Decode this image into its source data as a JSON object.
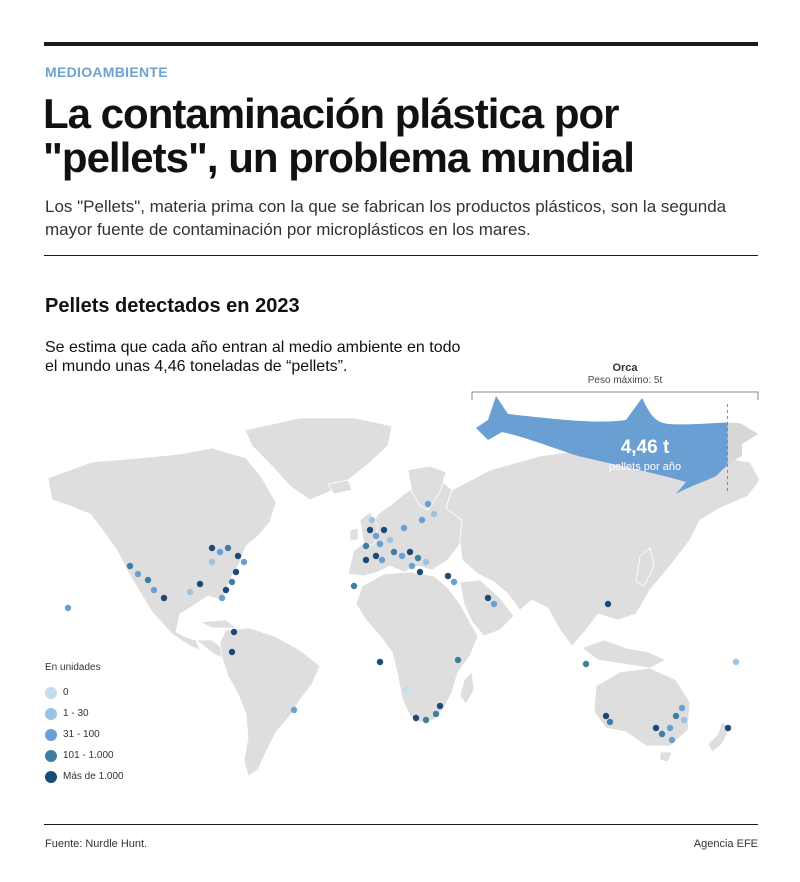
{
  "header": {
    "kicker": "MEDIOAMBIENTE",
    "title": "La contaminación plástica por \"pellets\", un problema mundial",
    "subtitle": "Los \"Pellets\", materia prima con la que se fabrican los productos plásticos, son la segunda mayor fuente de contaminación por microplásticos en los mares."
  },
  "section": {
    "title": "Pellets detectados en 2023",
    "description": "Se estima que cada año entran al medio ambiente en todo el mundo unas 4,46 toneladas de “pellets”."
  },
  "orca": {
    "name": "Orca",
    "max_weight": "Peso máximo: 5t",
    "value": "4,46 t",
    "unit": "pellets por año",
    "fill_fraction": 0.892,
    "color": "#6a9fd4",
    "remainder_color": "#d7d7d7"
  },
  "legend": {
    "title": "En unidades",
    "items": [
      {
        "label": "0",
        "color": "#c5dcec"
      },
      {
        "label": "1 - 30",
        "color": "#9dc3e3"
      },
      {
        "label": "31 - 100",
        "color": "#6a9fd4"
      },
      {
        "label": "101 - 1.000",
        "color": "#3f7f9e"
      },
      {
        "label": "Más de 1.000",
        "color": "#1a4a75"
      }
    ]
  },
  "colors": {
    "land": "#dedede",
    "accent": "#6fa3cf"
  },
  "footer": {
    "source": "Fuente: Nurdle Hunt.",
    "credit": "Agencia EFE"
  }
}
